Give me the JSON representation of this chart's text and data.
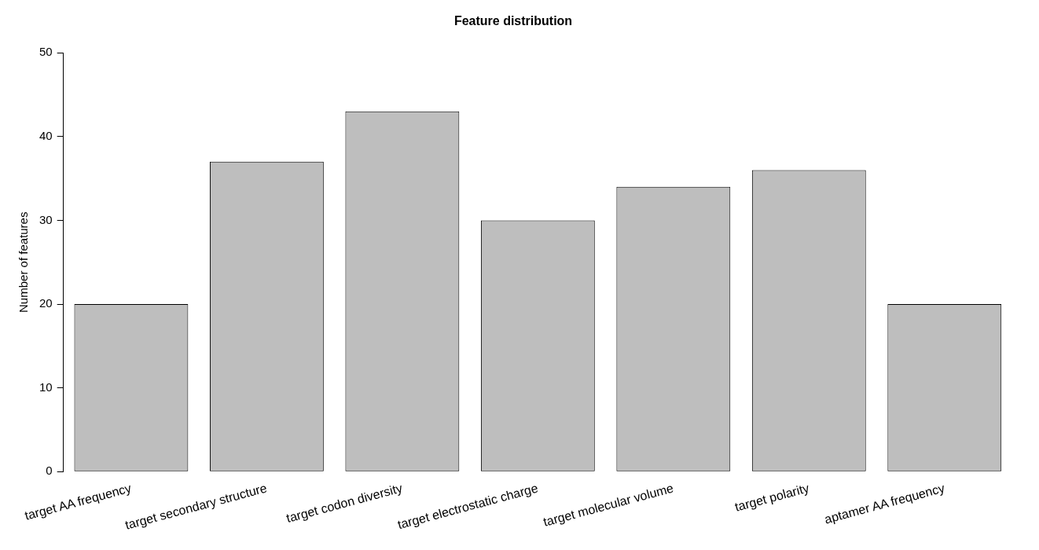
{
  "chart_data": {
    "type": "bar",
    "title": "Feature distribution",
    "ylabel": "Number of features",
    "categories": [
      "target AA frequency",
      "target secondary structure",
      "target codon diversity",
      "target electrostatic charge",
      "target molecular volume",
      "target polarity",
      "aptamer AA frequency"
    ],
    "values": [
      20,
      37,
      43,
      30,
      34,
      36,
      20
    ],
    "color": "#bebebe",
    "ylim": [
      0,
      50
    ],
    "yticks": [
      0,
      10,
      20,
      30,
      40,
      50
    ],
    "grid": false,
    "legend": false
  }
}
